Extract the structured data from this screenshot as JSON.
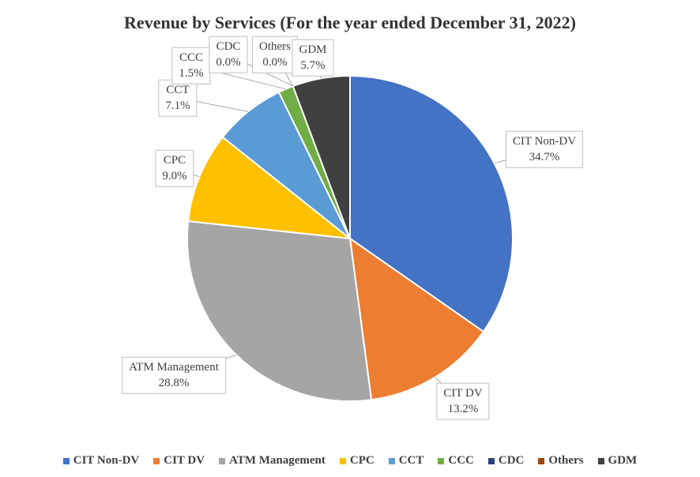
{
  "chart_data": {
    "type": "pie",
    "title": "Revenue by Services (For the year ended December 31, 2022)",
    "labels": [
      "CIT Non-DV",
      "CIT DV",
      "ATM Management",
      "CPC",
      "CCT",
      "CCC",
      "CDC",
      "Others",
      "GDM"
    ],
    "values": [
      34.7,
      13.2,
      28.8,
      9.0,
      7.1,
      1.5,
      0.0,
      0.0,
      5.7
    ],
    "formatted_values": [
      "34.7%",
      "13.2%",
      "28.8%",
      "9.0%",
      "7.1%",
      "1.5%",
      "0.0%",
      "0.0%",
      "5.7%"
    ],
    "colors": [
      "#4472C4",
      "#ED7D31",
      "#A5A5A5",
      "#FFC000",
      "#5B9BD5",
      "#70AD47",
      "#264478",
      "#9E480E",
      "#404040"
    ],
    "unit": "%",
    "start_angle_deg": 0,
    "direction": "clockwise",
    "legend_position": "bottom",
    "data_label_style": "callout-boxes"
  }
}
